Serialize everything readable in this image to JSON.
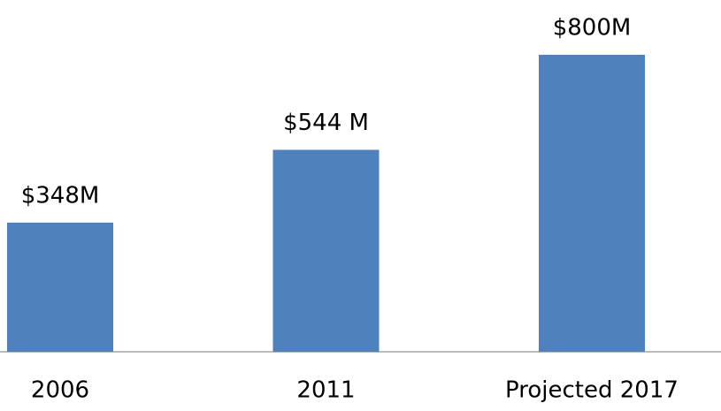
{
  "chart_data": {
    "type": "bar",
    "categories": [
      "2006",
      "2011",
      "Projected 2017"
    ],
    "values": [
      348,
      544,
      800
    ],
    "value_labels": [
      "$348M",
      "$544 M",
      "$800M"
    ],
    "color": "#4f81bd"
  }
}
